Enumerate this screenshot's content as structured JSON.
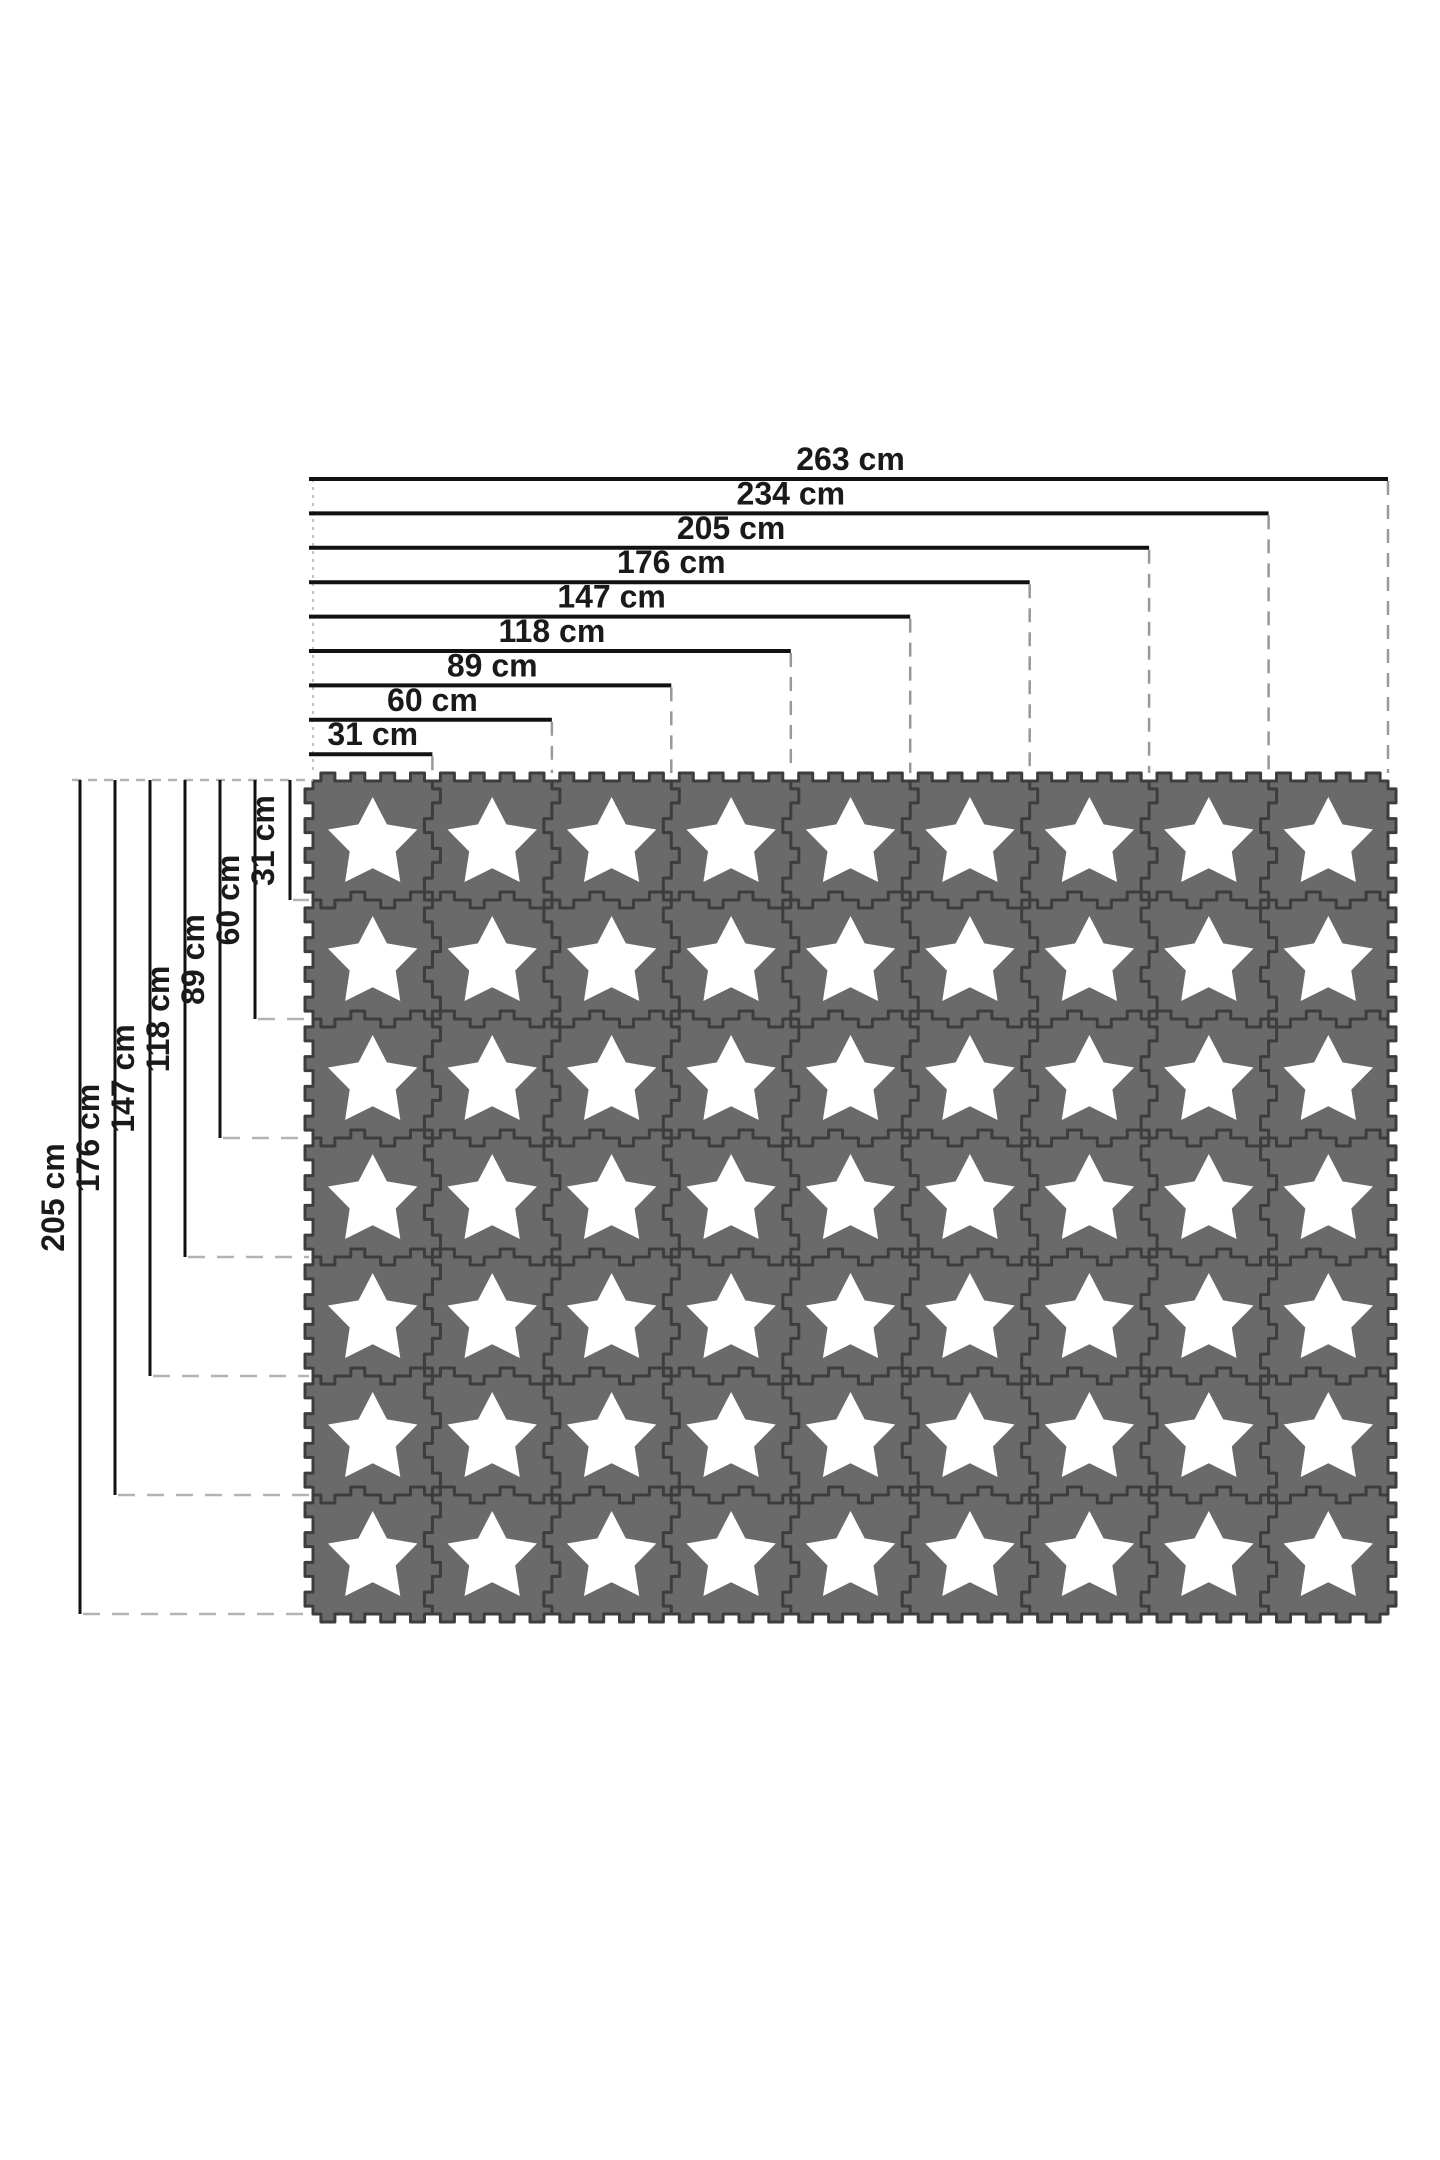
{
  "page": {
    "background": "#ffffff",
    "description": "Dimension diagram of an interlocking foam puzzle play mat with star cut-outs"
  },
  "diagram": {
    "unit": "cm",
    "top_dimensions": [
      {
        "label": "263 cm",
        "value": 263,
        "tiles": 9
      },
      {
        "label": "234 cm",
        "value": 234,
        "tiles": 8
      },
      {
        "label": "205 cm",
        "value": 205,
        "tiles": 7
      },
      {
        "label": "176 cm",
        "value": 176,
        "tiles": 6
      },
      {
        "label": "147 cm",
        "value": 147,
        "tiles": 5
      },
      {
        "label": "118 cm",
        "value": 118,
        "tiles": 4
      },
      {
        "label": "89 cm",
        "value": 89,
        "tiles": 3
      },
      {
        "label": "60 cm",
        "value": 60,
        "tiles": 2
      },
      {
        "label": "31 cm",
        "value": 31,
        "tiles": 1
      }
    ],
    "left_dimensions": [
      {
        "label": "205 cm",
        "value": 205,
        "tiles": 7
      },
      {
        "label": "176 cm",
        "value": 176,
        "tiles": 6
      },
      {
        "label": "147 cm",
        "value": 147,
        "tiles": 5
      },
      {
        "label": "118 cm",
        "value": 118,
        "tiles": 4
      },
      {
        "label": "89 cm",
        "value": 89,
        "tiles": 3
      },
      {
        "label": "60 cm",
        "value": 60,
        "tiles": 2
      },
      {
        "label": "31 cm",
        "value": 31,
        "tiles": 1
      }
    ],
    "mat": {
      "rows": 7,
      "columns": 9,
      "tile_count": 63,
      "tile_color": "#6a6a6a",
      "seam_color": "#3d3d3d",
      "star_color": "#ffffff",
      "star_shape": "5-point-star"
    },
    "line_colors": {
      "dimension_line": "#111111",
      "text": "#1a1a1a",
      "dashed_guide": "#999999",
      "light_dashed_guide": "#b3b3b3",
      "dotted_guide": "#c2c2c2"
    }
  }
}
